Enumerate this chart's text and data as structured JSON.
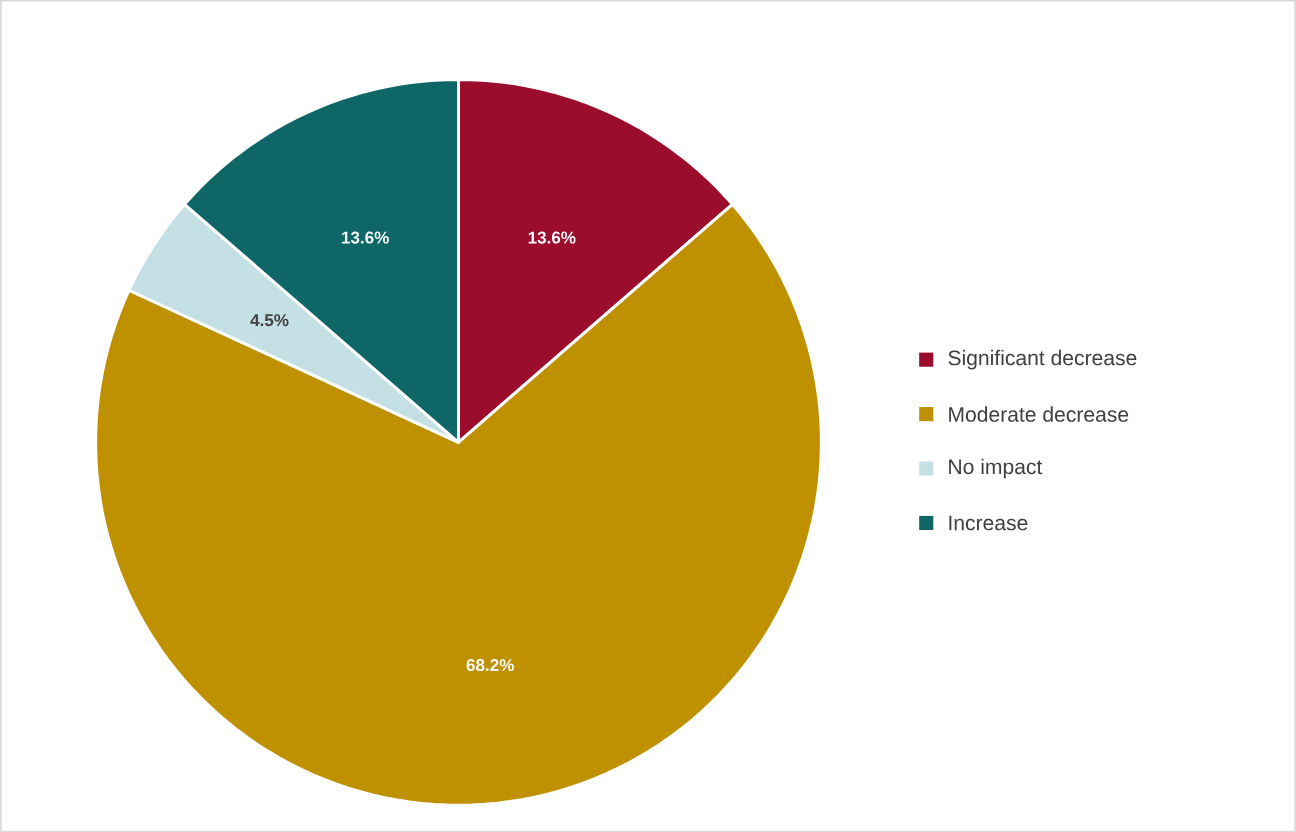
{
  "chart_data": {
    "type": "pie",
    "categories": [
      "Significant decrease",
      "Moderate decrease",
      "No impact",
      "Increase"
    ],
    "values": [
      13.6,
      68.2,
      4.5,
      13.6
    ],
    "colors": [
      "#9c0c2c",
      "#bf9000",
      "#c4e0e4",
      "#0e6666"
    ],
    "value_labels": [
      "13.6%",
      "68.2%",
      "4.5%",
      "13.6%"
    ],
    "legend": "right"
  }
}
